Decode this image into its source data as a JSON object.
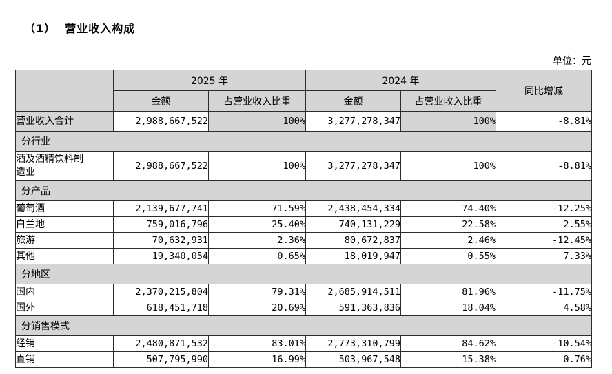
{
  "page": {
    "title": "（1）  营业收入构成",
    "unit_label": "单位：元"
  },
  "colors": {
    "header_fill": "#d5d5d5",
    "border": "#2b2b2b",
    "background": "#ffffff"
  },
  "table": {
    "header": {
      "year_2025": "2025 年",
      "year_2024": "2024 年",
      "yoy": "同比增减",
      "amount": "金额",
      "ratio": "占营业收入比重"
    },
    "rows": [
      {
        "type": "data",
        "label": "营业收入合计",
        "amount_2025": "2,988,667,522",
        "ratio_2025": "100%",
        "amount_2024": "3,277,278,347",
        "ratio_2024": "100%",
        "yoy": "-8.81%"
      },
      {
        "type": "section",
        "label": "分行业"
      },
      {
        "type": "data",
        "label": "酒及酒精饮料制\n造业",
        "amount_2025": "2,988,667,522",
        "ratio_2025": "100%",
        "amount_2024": "3,277,278,347",
        "ratio_2024": "100%",
        "yoy": "-8.81%"
      },
      {
        "type": "section",
        "label": "分产品"
      },
      {
        "type": "data",
        "label": "葡萄酒",
        "amount_2025": "2,139,677,741",
        "ratio_2025": "71.59%",
        "amount_2024": "2,438,454,334",
        "ratio_2024": "74.40%",
        "yoy": "-12.25%"
      },
      {
        "type": "data",
        "label": "白兰地",
        "amount_2025": "759,016,796",
        "ratio_2025": "25.40%",
        "amount_2024": "740,131,229",
        "ratio_2024": "22.58%",
        "yoy": "2.55%"
      },
      {
        "type": "data",
        "label": "旅游",
        "amount_2025": "70,632,931",
        "ratio_2025": "2.36%",
        "amount_2024": "80,672,837",
        "ratio_2024": "2.46%",
        "yoy": "-12.45%"
      },
      {
        "type": "data",
        "label": "其他",
        "amount_2025": "19,340,054",
        "ratio_2025": "0.65%",
        "amount_2024": "18,019,947",
        "ratio_2024": "0.55%",
        "yoy": "7.33%"
      },
      {
        "type": "section",
        "label": "分地区"
      },
      {
        "type": "data",
        "label": "国内",
        "amount_2025": "2,370,215,804",
        "ratio_2025": "79.31%",
        "amount_2024": "2,685,914,511",
        "ratio_2024": "81.96%",
        "yoy": "-11.75%"
      },
      {
        "type": "data",
        "label": "国外",
        "amount_2025": "618,451,718",
        "ratio_2025": "20.69%",
        "amount_2024": "591,363,836",
        "ratio_2024": "18.04%",
        "yoy": "4.58%"
      },
      {
        "type": "section",
        "label": "分销售模式"
      },
      {
        "type": "data",
        "label": "经销",
        "amount_2025": "2,480,871,532",
        "ratio_2025": "83.01%",
        "amount_2024": "2,773,310,799",
        "ratio_2024": "84.62%",
        "yoy": "-10.54%"
      },
      {
        "type": "data",
        "label": "直销",
        "amount_2025": "507,795,990",
        "ratio_2025": "16.99%",
        "amount_2024": "503,967,548",
        "ratio_2024": "15.38%",
        "yoy": "0.76%"
      }
    ]
  }
}
